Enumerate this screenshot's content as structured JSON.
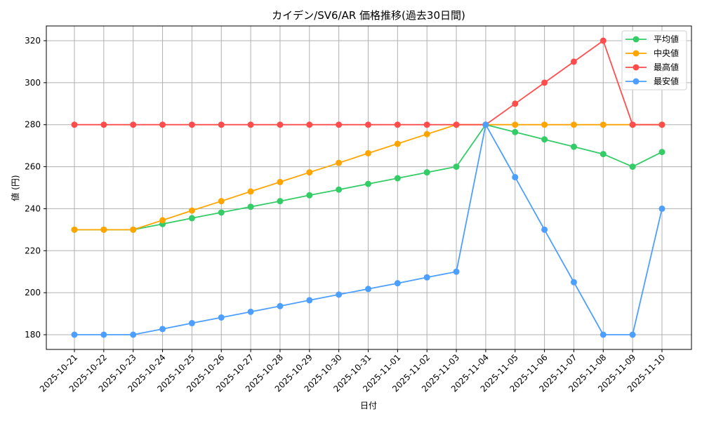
{
  "chart_data": {
    "type": "line",
    "title": "カイデン/SV6/AR 価格推移(過去30日間)",
    "xlabel": "日付",
    "ylabel": "値 (円)",
    "ylim": [
      173,
      327
    ],
    "yticks": [
      180,
      200,
      220,
      240,
      260,
      280,
      300,
      320
    ],
    "grid": true,
    "legend_position": "upper right",
    "categories": [
      "2025-10-21",
      "2025-10-22",
      "2025-10-23",
      "2025-10-24",
      "2025-10-25",
      "2025-10-26",
      "2025-10-27",
      "2025-10-28",
      "2025-10-29",
      "2025-10-30",
      "2025-10-31",
      "2025-11-01",
      "2025-11-02",
      "2025-11-03",
      "2025-11-04",
      "2025-11-05",
      "2025-11-06",
      "2025-11-07",
      "2025-11-08",
      "2025-11-09",
      "2025-11-10"
    ],
    "series": [
      {
        "name": "平均値",
        "color": "#33cc66",
        "values": [
          230,
          230,
          230,
          232.7,
          235.5,
          238.2,
          240.9,
          243.6,
          246.4,
          249.1,
          251.8,
          254.5,
          257.3,
          260,
          280,
          276.5,
          273,
          269.5,
          266,
          260,
          267
        ]
      },
      {
        "name": "中央値",
        "color": "#ffa500",
        "values": [
          230,
          230,
          230,
          234.5,
          239.1,
          243.6,
          248.2,
          252.7,
          257.3,
          261.8,
          266.4,
          270.9,
          275.5,
          280,
          280,
          280,
          280,
          280,
          280,
          280,
          280
        ]
      },
      {
        "name": "最高値",
        "color": "#ff4d4d",
        "values": [
          280,
          280,
          280,
          280,
          280,
          280,
          280,
          280,
          280,
          280,
          280,
          280,
          280,
          280,
          280,
          290,
          300,
          310,
          320,
          280,
          280
        ]
      },
      {
        "name": "最安値",
        "color": "#4d9fff",
        "values": [
          180,
          180,
          180,
          182.7,
          185.5,
          188.2,
          190.9,
          193.6,
          196.4,
          199.1,
          201.8,
          204.5,
          207.3,
          210,
          280,
          255,
          230,
          205,
          180,
          180,
          240
        ]
      }
    ]
  }
}
